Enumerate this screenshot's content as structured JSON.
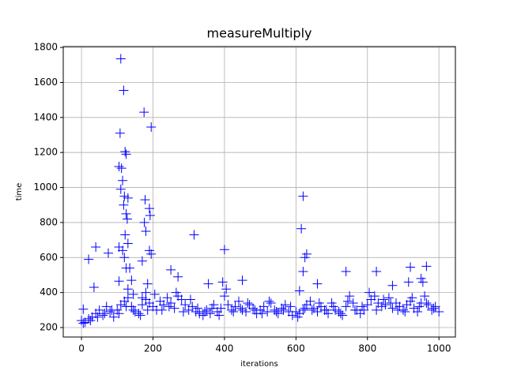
{
  "chart_data": {
    "type": "scatter",
    "title": "measureMultiply",
    "x_label": "iterations",
    "y_label": "time",
    "color": "#0000ff",
    "marker": "+",
    "grid": true,
    "xlim": [
      -51,
      1046
    ],
    "ylim": [
      146,
      1805
    ],
    "xticks": [
      0,
      200,
      400,
      600,
      800,
      1000
    ],
    "yticks": [
      200,
      400,
      600,
      800,
      1000,
      1200,
      1400,
      1600,
      1800
    ],
    "x": [
      0,
      10,
      20,
      30,
      40,
      50,
      60,
      70,
      80,
      90,
      100,
      110,
      120,
      130,
      140,
      150,
      160,
      170,
      180,
      190,
      200,
      210,
      220,
      230,
      240,
      250,
      260,
      270,
      280,
      290,
      300,
      310,
      320,
      330,
      340,
      350,
      360,
      370,
      380,
      390,
      400,
      410,
      420,
      430,
      440,
      450,
      460,
      470,
      480,
      490,
      500,
      510,
      520,
      530,
      540,
      550,
      560,
      570,
      580,
      590,
      600,
      610,
      620,
      630,
      640,
      650,
      660,
      670,
      680,
      690,
      700,
      710,
      720,
      730,
      740,
      750,
      760,
      770,
      780,
      790,
      800,
      810,
      820,
      830,
      840,
      850,
      860,
      870,
      880,
      890,
      900,
      910,
      920,
      930,
      940,
      950,
      960,
      970,
      980,
      990,
      1000,
      205,
      225,
      245,
      265,
      285,
      305,
      325,
      345,
      365,
      385,
      405,
      425,
      445,
      465,
      485,
      505,
      525,
      545,
      565,
      585,
      605,
      625,
      645,
      665,
      685,
      705,
      725,
      745,
      765,
      785,
      805,
      825,
      845,
      865,
      885,
      905,
      925,
      945,
      965,
      985,
      5,
      25,
      45,
      65,
      85,
      105,
      125,
      145,
      165,
      185,
      20,
      40,
      35,
      75,
      5,
      110,
      118,
      108,
      105,
      112,
      122,
      125,
      115,
      110,
      120,
      130,
      118,
      125,
      128,
      122,
      130,
      105,
      115,
      120,
      125,
      135,
      105,
      140,
      130,
      145,
      170,
      175,
      178,
      176,
      180,
      190,
      192,
      195,
      190,
      195,
      185,
      180,
      170,
      250,
      270,
      315,
      400,
      395,
      450,
      355,
      615,
      620,
      625,
      630,
      620,
      610,
      660,
      740,
      825,
      920,
      965,
      950,
      955,
      915,
      870
    ],
    "values": [
      240,
      230,
      250,
      260,
      280,
      300,
      270,
      320,
      290,
      260,
      300,
      330,
      350,
      370,
      320,
      290,
      280,
      330,
      360,
      340,
      320,
      300,
      350,
      330,
      370,
      340,
      310,
      380,
      360,
      330,
      300,
      320,
      290,
      280,
      270,
      300,
      280,
      330,
      290,
      310,
      380,
      330,
      300,
      320,
      350,
      300,
      290,
      330,
      310,
      280,
      300,
      320,
      290,
      340,
      300,
      280,
      310,
      330,
      290,
      270,
      290,
      280,
      300,
      330,
      350,
      310,
      290,
      320,
      300,
      280,
      340,
      300,
      290,
      270,
      320,
      380,
      340,
      300,
      280,
      300,
      330,
      360,
      380,
      340,
      320,
      330,
      370,
      310,
      340,
      320,
      300,
      330,
      350,
      310,
      290,
      340,
      380,
      330,
      300,
      320,
      290,
      390,
      300,
      320,
      400,
      290,
      360,
      310,
      290,
      310,
      270,
      420,
      290,
      310,
      340,
      300,
      280,
      350,
      290,
      300,
      320,
      260,
      310,
      300,
      340,
      300,
      320,
      280,
      350,
      300,
      320,
      400,
      300,
      360,
      340,
      300,
      290,
      370,
      320,
      340,
      310,
      225,
      240,
      260,
      280,
      300,
      280,
      320,
      300,
      270,
      300,
      590,
      660,
      430,
      625,
      305,
      1735,
      1555,
      1310,
      1120,
      1110,
      1205,
      1190,
      1040,
      990,
      950,
      940,
      900,
      850,
      820,
      730,
      680,
      660,
      640,
      600,
      540,
      540,
      465,
      470,
      420,
      390,
      580,
      1430,
      930,
      800,
      750,
      880,
      840,
      1345,
      640,
      620,
      450,
      400,
      370,
      530,
      490,
      730,
      645,
      460,
      470,
      450,
      765,
      950,
      600,
      620,
      520,
      410,
      450,
      520,
      520,
      545,
      550,
      480,
      460,
      460,
      440
    ]
  }
}
